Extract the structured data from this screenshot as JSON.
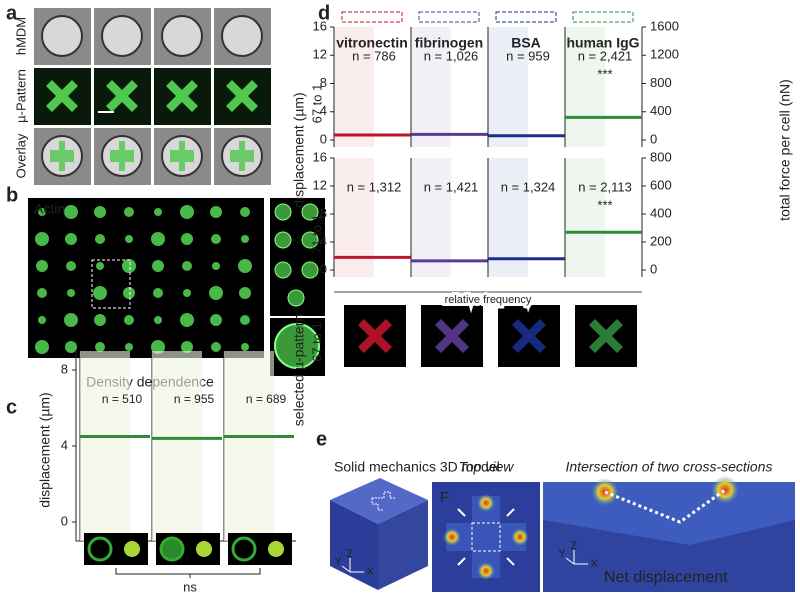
{
  "panel_a": {
    "label": "a",
    "row_labels": [
      "hMDM",
      "µ-Pattern",
      "Overlay"
    ]
  },
  "panel_b": {
    "label": "b",
    "title": "Actin"
  },
  "panel_c": {
    "label": "c",
    "title": "Density dependence",
    "y_label": "displacement (µm)",
    "ylim": [
      -1,
      9
    ],
    "yticks": [
      0,
      4,
      8
    ],
    "color": "#2e8b3a",
    "n_labels": [
      "n = 510",
      "n = 955",
      "n = 689"
    ],
    "means": [
      4.5,
      4.4,
      4.5
    ],
    "significance": "ns"
  },
  "panel_d": {
    "label": "d",
    "y_label": "displacement (µm)",
    "y2_label": "total force per cell (nN)",
    "x_label": "relative frequency",
    "ylim": [
      -1,
      16
    ],
    "yticks": [
      0,
      4,
      8,
      12,
      16
    ],
    "proteins": [
      {
        "name": "vitronectin",
        "color": "#c0142a"
      },
      {
        "name": "fibrinogen",
        "color": "#5b3b92"
      },
      {
        "name": "BSA",
        "color": "#1b2f8c"
      },
      {
        "name": "human IgG",
        "color": "#2e8b3a"
      }
    ],
    "rows": [
      {
        "ratio": "67 to 1",
        "ratio_color": "#9a1e2a",
        "y2lim": [
          -100,
          1600
        ],
        "y2ticks": [
          0,
          400,
          800,
          1200,
          1600
        ],
        "n_labels": [
          "n = 786",
          "n = 1,026",
          "n = 959",
          "n = 2,421"
        ],
        "means": [
          0.7,
          0.8,
          0.6,
          3.2
        ],
        "significance": "***"
      },
      {
        "ratio": "71 to 1",
        "ratio_color": "#3a5aa8",
        "y2lim": [
          -50,
          800
        ],
        "y2ticks": [
          0,
          200,
          400,
          600,
          800
        ],
        "n_labels": [
          "n = 1,312",
          "n = 1,421",
          "n = 1,324",
          "n = 2,113"
        ],
        "means": [
          1.8,
          1.3,
          1.6,
          5.4
        ],
        "significance": "***"
      }
    ],
    "bottom_label": "selected µ-pattern",
    "bottom_ratio": "67 to 1"
  },
  "panel_e": {
    "label": "e",
    "title": "Solid mechanics 3D model",
    "subtitles": [
      "Top view",
      "Intersection of two cross-sections"
    ],
    "force": "F",
    "net": "Net displacement",
    "axes": [
      "Z",
      "Y",
      "X"
    ]
  }
}
